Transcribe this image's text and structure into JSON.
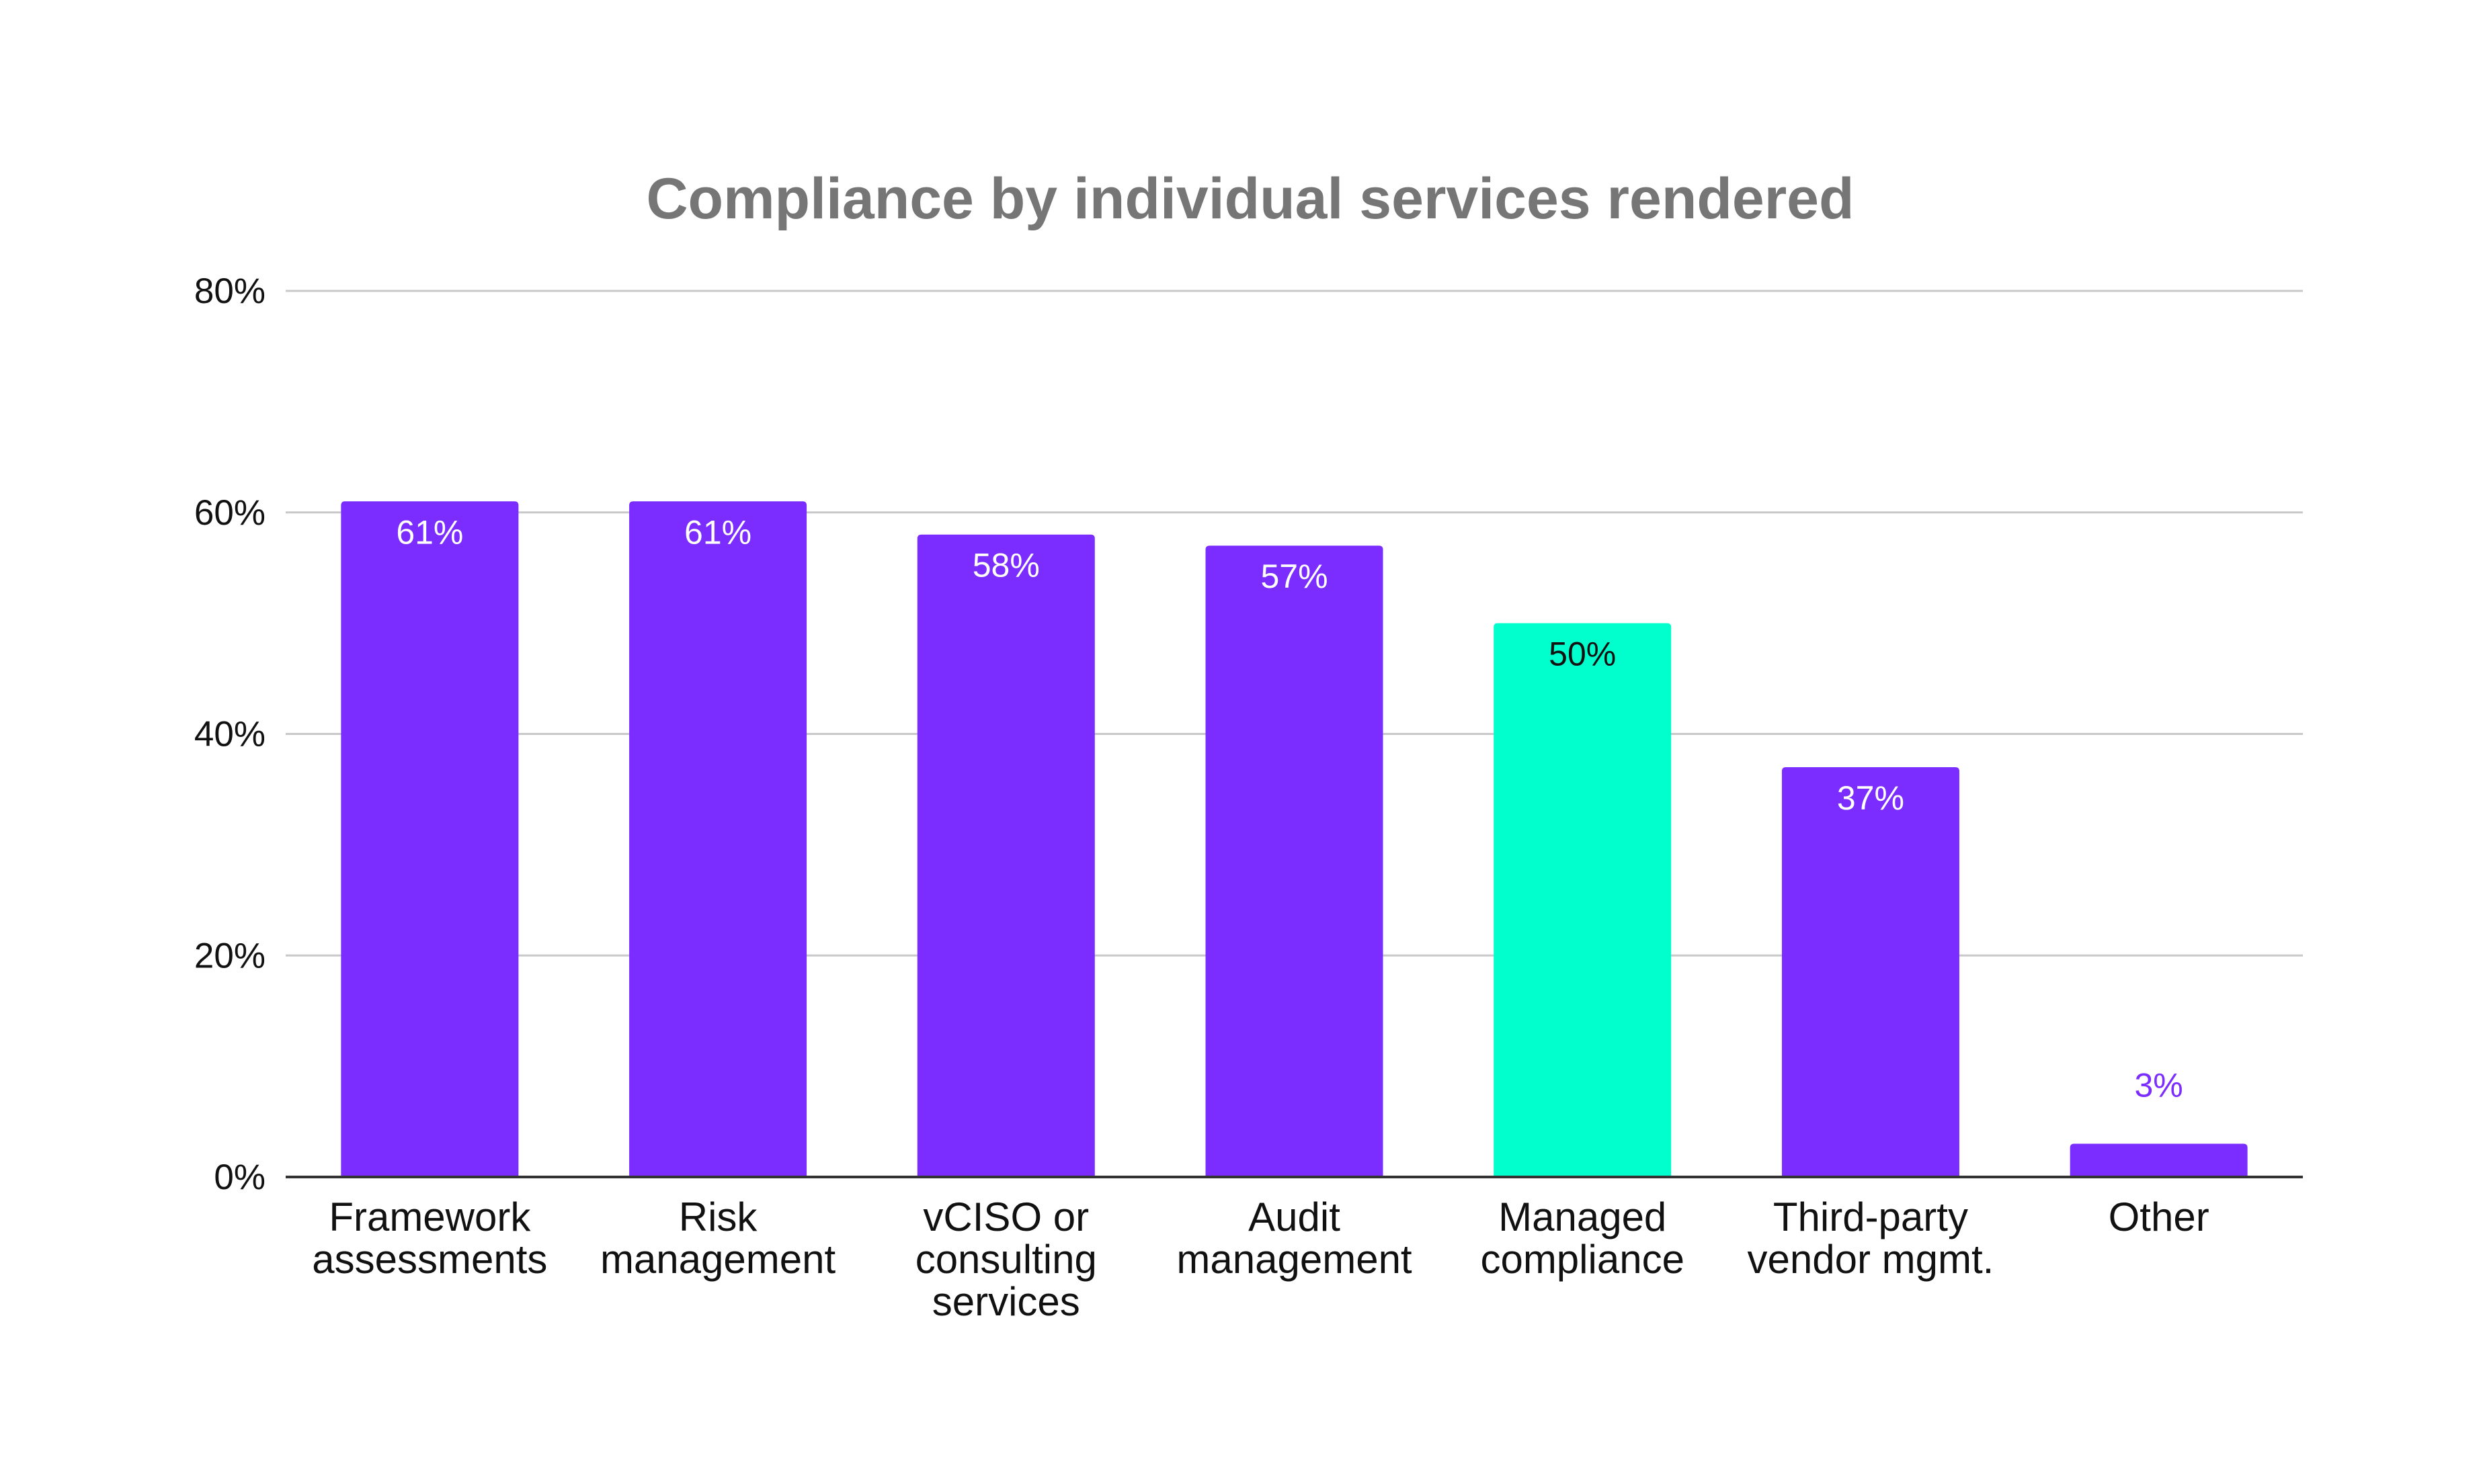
{
  "chart_data": {
    "type": "bar",
    "title": "Compliance by individual services rendered",
    "categories": [
      [
        "Framework",
        "assessments"
      ],
      [
        "Risk",
        "management"
      ],
      [
        "vCISO or",
        "consulting",
        "services"
      ],
      [
        "Audit",
        "management"
      ],
      [
        "Managed",
        "compliance"
      ],
      [
        "Third-party",
        "vendor mgmt."
      ],
      [
        "Other"
      ]
    ],
    "values": [
      61,
      61,
      58,
      57,
      50,
      37,
      3
    ],
    "data_labels": [
      "61%",
      "61%",
      "58%",
      "57%",
      "50%",
      "37%",
      "3%"
    ],
    "ylim": [
      0,
      80
    ],
    "y_ticks": [
      0,
      20,
      40,
      60,
      80
    ],
    "y_tick_labels": [
      "0%",
      "20%",
      "40%",
      "60%",
      "80%"
    ],
    "grid": true,
    "colors": {
      "bar": "#7b2cff",
      "highlight": "#00ffcc",
      "label_on_bar": "#ffffff",
      "label_on_highlight": "#111111",
      "label_outside": "#7b2cff"
    },
    "highlight_index": 4
  }
}
